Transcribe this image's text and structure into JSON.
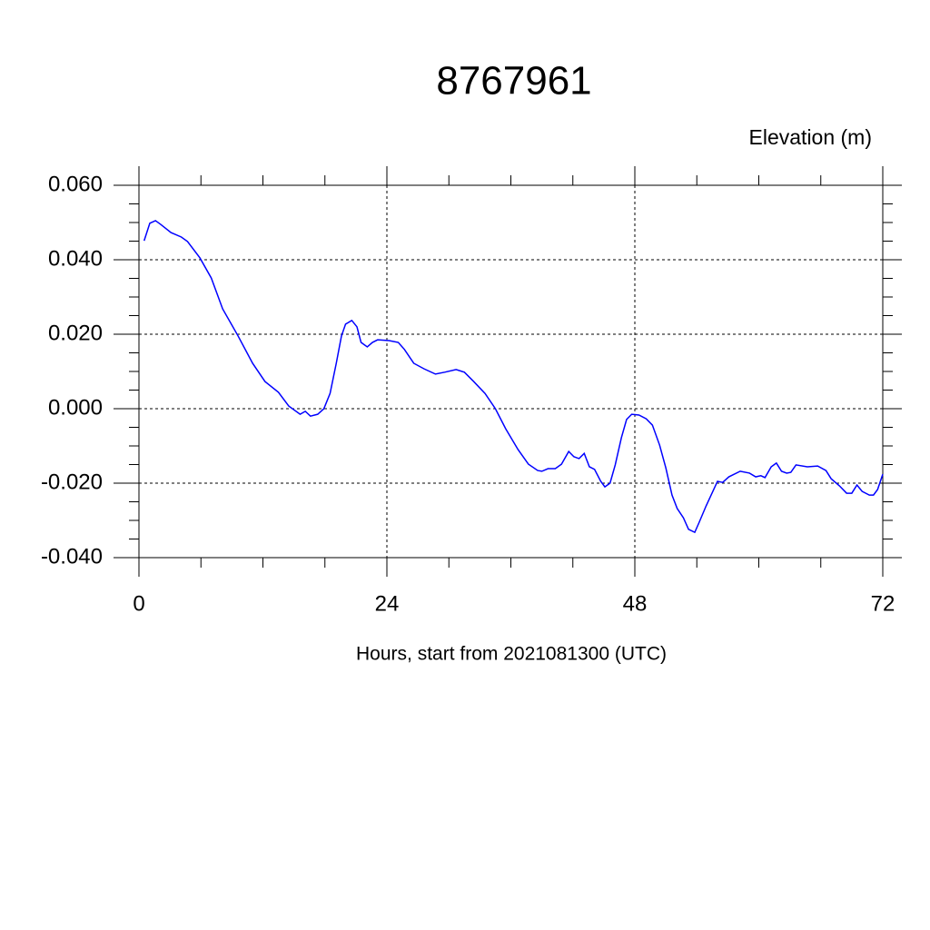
{
  "chart_data": {
    "type": "line",
    "title": "8767961",
    "y_axis_label": "Elevation (m)",
    "x_axis_label": "Hours, start from 2021081300 (UTC)",
    "xlim": [
      0,
      72
    ],
    "xticks": [
      0,
      24,
      48,
      72
    ],
    "ylim": [
      -0.04,
      0.06
    ],
    "yticks": [
      {
        "value": -0.04,
        "label": "-0.040"
      },
      {
        "value": -0.02,
        "label": "-0.020"
      },
      {
        "value": 0,
        "label": "0.000"
      },
      {
        "value": 0.02,
        "label": "0.020"
      },
      {
        "value": 0.04,
        "label": "0.040"
      },
      {
        "value": 0.06,
        "label": "0.060"
      }
    ],
    "grid": true,
    "x": [
      0.5,
      1.05,
      1.6,
      2.1,
      3.1,
      4.1,
      4.7,
      5.9,
      7.0,
      8.1,
      9.6,
      11.0,
      12.2,
      13.5,
      14.5,
      15.6,
      16.1,
      16.6,
      17.3,
      17.9,
      18.5,
      19.1,
      19.6,
      20.0,
      20.6,
      21.1,
      21.5,
      22.1,
      22.6,
      23.1,
      24.2,
      25.1,
      25.7,
      26.6,
      27.6,
      28.7,
      29.6,
      30.7,
      31.5,
      32.4,
      33.5,
      34.5,
      35.5,
      36.7,
      37.7,
      38.6,
      39.0,
      39.6,
      40.3,
      40.9,
      41.6,
      42.1,
      42.6,
      43.1,
      43.6,
      44.1,
      44.7,
      45.1,
      45.6,
      46.1,
      46.7,
      47.2,
      47.7,
      48.4,
      49.1,
      49.7,
      50.4,
      51.0,
      51.6,
      52.1,
      52.7,
      53.2,
      53.8,
      54.2,
      54.9,
      56.0,
      56.5,
      57.1,
      58.2,
      59.1,
      59.7,
      60.2,
      60.6,
      61.2,
      61.7,
      62.2,
      62.7,
      63.1,
      63.6,
      64.7,
      65.7,
      66.5,
      67.0,
      67.8,
      68.5,
      69.0,
      69.5,
      70.0,
      70.7,
      71.1,
      71.5,
      72.0
    ],
    "series": [
      {
        "color": "#0000ff",
        "values": [
          0.0451,
          0.0498,
          0.0505,
          0.0495,
          0.0473,
          0.0461,
          0.0449,
          0.0405,
          0.0351,
          0.0268,
          0.0195,
          0.0122,
          0.0073,
          0.0044,
          0.0007,
          -0.0015,
          -0.0007,
          -0.002,
          -0.0015,
          0.0,
          0.0041,
          0.0122,
          0.0195,
          0.0227,
          0.0237,
          0.022,
          0.0178,
          0.0166,
          0.0178,
          0.0185,
          0.0183,
          0.0178,
          0.0159,
          0.0122,
          0.0107,
          0.0093,
          0.0098,
          0.0105,
          0.0098,
          0.0073,
          0.0041,
          0.0,
          -0.0054,
          -0.011,
          -0.0149,
          -0.0166,
          -0.0168,
          -0.0161,
          -0.0161,
          -0.0149,
          -0.0115,
          -0.0129,
          -0.0134,
          -0.012,
          -0.0156,
          -0.0163,
          -0.0195,
          -0.021,
          -0.02,
          -0.0151,
          -0.0078,
          -0.0029,
          -0.0015,
          -0.0017,
          -0.0027,
          -0.0044,
          -0.0098,
          -0.0159,
          -0.0232,
          -0.0268,
          -0.0293,
          -0.0324,
          -0.0332,
          -0.0307,
          -0.0261,
          -0.0195,
          -0.0198,
          -0.0183,
          -0.0168,
          -0.0173,
          -0.0183,
          -0.018,
          -0.0185,
          -0.0156,
          -0.0146,
          -0.0168,
          -0.0173,
          -0.0171,
          -0.0151,
          -0.0156,
          -0.0154,
          -0.0166,
          -0.0188,
          -0.0207,
          -0.0227,
          -0.0227,
          -0.0205,
          -0.0222,
          -0.0232,
          -0.0232,
          -0.0217,
          -0.0176
        ]
      }
    ]
  }
}
